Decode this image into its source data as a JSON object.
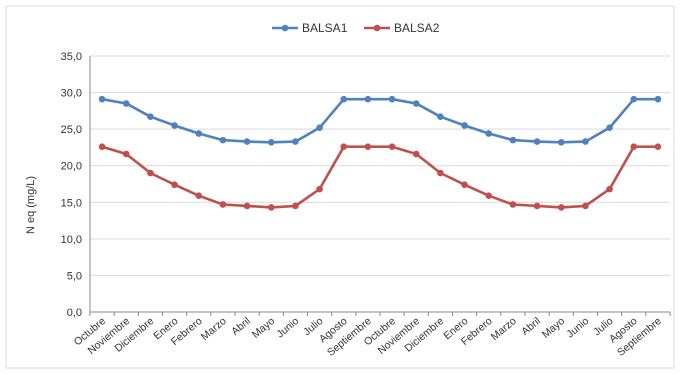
{
  "chart_data": {
    "type": "line",
    "title": "",
    "ylabel": "N eq (mg/L)",
    "xlabel": "",
    "ylim": [
      0,
      35
    ],
    "y_ticks": [
      "0,0",
      "5,0",
      "10,0",
      "15,0",
      "20,0",
      "25,0",
      "30,0",
      "35,0"
    ],
    "grid": true,
    "legend_position": "top-center",
    "categories": [
      "Octubre",
      "Noviembre",
      "Diciembre",
      "Enero",
      "Febrero",
      "Marzo",
      "Abril",
      "Mayo",
      "Junio",
      "Julio",
      "Agosto",
      "Septiembre",
      "Octubre",
      "Noviembre",
      "Diciembre",
      "Enero",
      "Febrero",
      "Marzo",
      "Abril",
      "Mayo",
      "Junio",
      "Julio",
      "Agosto",
      "Septiembre"
    ],
    "series": [
      {
        "name": "BALSA1",
        "color": "#4f81bd",
        "values": [
          29.1,
          28.5,
          26.7,
          25.5,
          24.4,
          23.5,
          23.3,
          23.2,
          23.3,
          25.2,
          29.1,
          29.1,
          29.1,
          28.5,
          26.7,
          25.5,
          24.4,
          23.5,
          23.3,
          23.2,
          23.3,
          25.2,
          29.1,
          29.1
        ]
      },
      {
        "name": "BALSA2",
        "color": "#c0504d",
        "values": [
          22.6,
          21.6,
          19.0,
          17.4,
          15.9,
          14.7,
          14.5,
          14.3,
          14.5,
          16.8,
          22.6,
          22.6,
          22.6,
          21.6,
          19.0,
          17.4,
          15.9,
          14.7,
          14.5,
          14.3,
          14.5,
          16.8,
          22.6,
          22.6
        ]
      }
    ]
  }
}
